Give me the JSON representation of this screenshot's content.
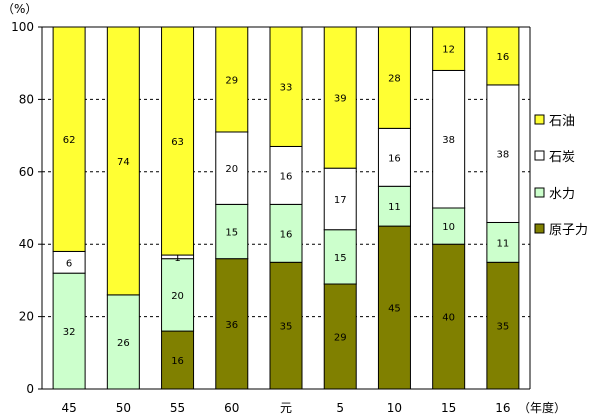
{
  "chart_data": {
    "type": "bar",
    "stacked": true,
    "percent": true,
    "categories": [
      "45",
      "50",
      "55",
      "60",
      "元",
      "5",
      "10",
      "15",
      "16"
    ],
    "series": [
      {
        "name": "原子力",
        "color": "#808000",
        "values": [
          0,
          0,
          16,
          36,
          35,
          29,
          45,
          40,
          35
        ],
        "labels": [
          "",
          "",
          "16",
          "36",
          "35",
          "29",
          "45",
          "40",
          "35"
        ]
      },
      {
        "name": "水力",
        "color": "#ccffcc",
        "values": [
          32,
          26,
          20,
          15,
          16,
          15,
          11,
          10,
          11
        ],
        "labels": [
          "32",
          "26",
          "20",
          "15",
          "16",
          "15",
          "11",
          "10",
          "11"
        ]
      },
      {
        "name": "石炭",
        "color": "#ffffff",
        "values": [
          6,
          0,
          1,
          20,
          16,
          17,
          16,
          38,
          38
        ],
        "labels": [
          "6",
          "",
          "1",
          "20",
          "16",
          "17",
          "16",
          "38",
          "38"
        ]
      },
      {
        "name": "石油",
        "color": "#ffff33",
        "values": [
          62,
          74,
          63,
          29,
          33,
          39,
          28,
          12,
          16
        ],
        "labels": [
          "62",
          "74",
          "63",
          "29",
          "33",
          "39",
          "28",
          "12",
          "16"
        ]
      }
    ],
    "ylim": [
      0,
      100
    ],
    "yticks": [
      "0",
      "20",
      "40",
      "60",
      "80",
      "100"
    ],
    "y_unit_label": "（%）",
    "x_unit_label": "（年度）",
    "grid": true,
    "legend_position": "right"
  }
}
